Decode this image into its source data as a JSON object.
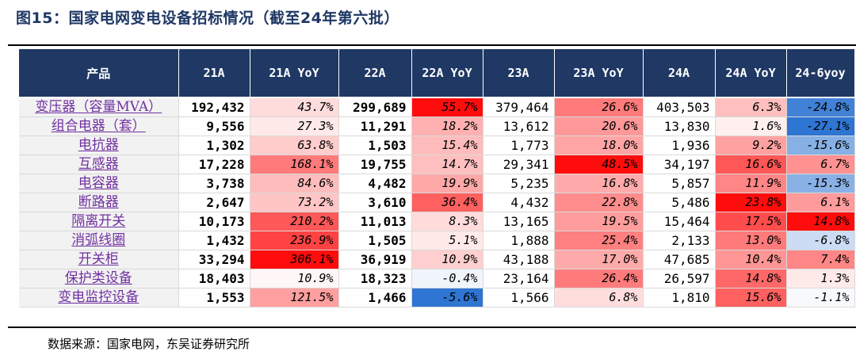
{
  "title": "图15：国家电网变电设备招标情况（截至24年第六批）",
  "source": "数据来源：国家电网，东吴证券研究所",
  "columns": [
    "产品",
    "21A",
    "21A YoY",
    "22A",
    "22A YoY",
    "23A",
    "23A YoY",
    "24A",
    "24A YoY",
    "24-6yoy"
  ],
  "rows": [
    {
      "product": "变压器（容量MVA）",
      "v21": "192,432",
      "y21": "43.7%",
      "v22": "299,689",
      "y22": "55.7%",
      "v23": "379,464",
      "y23": "26.6%",
      "v24": "403,503",
      "y24": "6.3%",
      "y6": "-24.8%"
    },
    {
      "product": "组合电器（套）",
      "v21": "9,556",
      "y21": "27.3%",
      "v22": "11,291",
      "y22": "18.2%",
      "v23": "13,612",
      "y23": "20.6%",
      "v24": "13,830",
      "y24": "1.6%",
      "y6": "-27.1%"
    },
    {
      "product": "电抗器",
      "v21": "1,302",
      "y21": "63.8%",
      "v22": "1,503",
      "y22": "15.4%",
      "v23": "1,773",
      "y23": "18.0%",
      "v24": "1,936",
      "y24": "9.2%",
      "y6": "-15.6%"
    },
    {
      "product": "互感器",
      "v21": "17,228",
      "y21": "168.1%",
      "v22": "19,755",
      "y22": "14.7%",
      "v23": "29,341",
      "y23": "48.5%",
      "v24": "34,197",
      "y24": "16.6%",
      "y6": "6.7%"
    },
    {
      "product": "电容器",
      "v21": "3,738",
      "y21": "84.6%",
      "v22": "4,482",
      "y22": "19.9%",
      "v23": "5,235",
      "y23": "16.8%",
      "v24": "5,857",
      "y24": "11.9%",
      "y6": "-15.3%"
    },
    {
      "product": "断路器",
      "v21": "2,647",
      "y21": "73.2%",
      "v22": "3,610",
      "y22": "36.4%",
      "v23": "4,432",
      "y23": "22.8%",
      "v24": "5,486",
      "y24": "23.8%",
      "y6": "6.1%"
    },
    {
      "product": "隔离开关",
      "v21": "10,173",
      "y21": "210.2%",
      "v22": "11,013",
      "y22": "8.3%",
      "v23": "13,165",
      "y23": "19.5%",
      "v24": "15,464",
      "y24": "17.5%",
      "y6": "14.8%"
    },
    {
      "product": "消弧线圈",
      "v21": "1,432",
      "y21": "236.9%",
      "v22": "1,505",
      "y22": "5.1%",
      "v23": "1,888",
      "y23": "25.4%",
      "v24": "2,133",
      "y24": "13.0%",
      "y6": "-6.8%"
    },
    {
      "product": "开关柜",
      "v21": "33,294",
      "y21": "306.1%",
      "v22": "36,919",
      "y22": "10.9%",
      "v23": "43,188",
      "y23": "17.0%",
      "v24": "47,685",
      "y24": "10.4%",
      "y6": "7.4%"
    },
    {
      "product": "保护类设备",
      "v21": "18,403",
      "y21": "10.9%",
      "v22": "18,323",
      "y22": "-0.4%",
      "v23": "23,164",
      "y23": "26.4%",
      "v24": "26,597",
      "y24": "14.8%",
      "y6": "1.3%"
    },
    {
      "product": "变电监控设备",
      "v21": "1,553",
      "y21": "121.5%",
      "v22": "1,466",
      "y22": "-5.6%",
      "v23": "1,566",
      "y23": "6.8%",
      "v24": "1,810",
      "y24": "15.6%",
      "y6": "-1.1%"
    }
  ]
}
